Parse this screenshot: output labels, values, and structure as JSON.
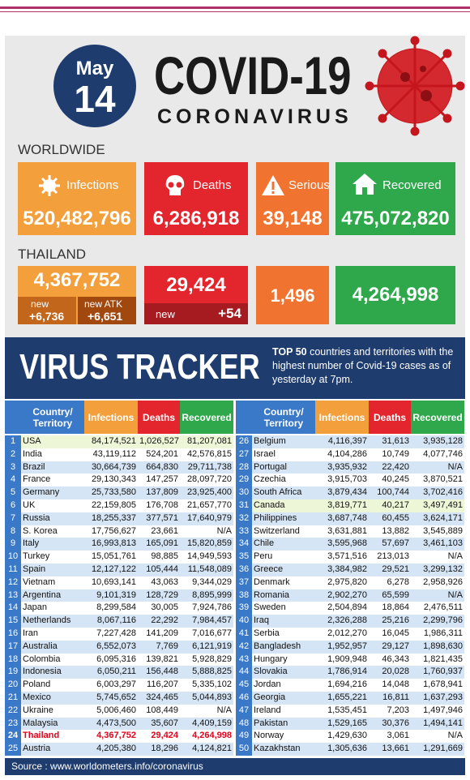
{
  "header": {
    "month": "May",
    "day": "14",
    "title": "COVID-19",
    "subtitle": "CORONAVIRUS"
  },
  "worldwide": {
    "label": "WORLDWIDE",
    "infections": {
      "label": "Infections",
      "value": "520,482,796"
    },
    "deaths": {
      "label": "Deaths",
      "value": "6,286,918"
    },
    "serious": {
      "label": "Serious",
      "value": "39,148"
    },
    "recovered": {
      "label": "Recovered",
      "value": "475,072,820"
    }
  },
  "thailand": {
    "label": "THAILAND",
    "infections": {
      "value": "4,367,752",
      "new_label": "new",
      "new_value": "+6,736",
      "atk_label": "new ATK",
      "atk_value": "+6,651"
    },
    "deaths": {
      "value": "29,424",
      "new_label": "new",
      "new_value": "+54"
    },
    "serious": {
      "value": "1,496"
    },
    "recovered": {
      "value": "4,264,998"
    }
  },
  "tracker": {
    "title": "VIRUS TRACKER",
    "lead": "TOP 50",
    "text": " countries and territories with the highest number of Covid-19 cases as of yesterday at 7pm."
  },
  "table": {
    "headers": [
      "Country/ Territory",
      "Infections",
      "Deaths",
      "Recovered"
    ],
    "rows": [
      [
        "1",
        "USA",
        "84,174,521",
        "1,026,527",
        "81,207,081"
      ],
      [
        "2",
        "India",
        "43,119,112",
        "524,201",
        "42,576,815"
      ],
      [
        "3",
        "Brazil",
        "30,664,739",
        "664,830",
        "29,711,738"
      ],
      [
        "4",
        "France",
        "29,130,343",
        "147,257",
        "28,097,720"
      ],
      [
        "5",
        "Germany",
        "25,733,580",
        "137,809",
        "23,925,400"
      ],
      [
        "6",
        "UK",
        "22,159,805",
        "176,708",
        "21,657,770"
      ],
      [
        "7",
        "Russia",
        "18,255,337",
        "377,571",
        "17,640,979"
      ],
      [
        "8",
        "S. Korea",
        "17,756,627",
        "23,661",
        "N/A"
      ],
      [
        "9",
        "Italy",
        "16,993,813",
        "165,091",
        "15,820,859"
      ],
      [
        "10",
        "Turkey",
        "15,051,761",
        "98,885",
        "14,949,593"
      ],
      [
        "11",
        "Spain",
        "12,127,122",
        "105,444",
        "11,548,089"
      ],
      [
        "12",
        "Vietnam",
        "10,693,141",
        "43,063",
        "9,344,029"
      ],
      [
        "13",
        "Argentina",
        "9,101,319",
        "128,729",
        "8,895,999"
      ],
      [
        "14",
        "Japan",
        "8,299,584",
        "30,005",
        "7,924,786"
      ],
      [
        "15",
        "Netherlands",
        "8,067,116",
        "22,292",
        "7,984,457"
      ],
      [
        "16",
        "Iran",
        "7,227,428",
        "141,209",
        "7,016,677"
      ],
      [
        "17",
        "Australia",
        "6,552,073",
        "7,769",
        "6,121,919"
      ],
      [
        "18",
        "Colombia",
        "6,095,316",
        "139,821",
        "5,928,829"
      ],
      [
        "19",
        "Indonesia",
        "6,050,211",
        "156,448",
        "5,888,825"
      ],
      [
        "20",
        "Poland",
        "6,003,297",
        "116,207",
        "5,335,102"
      ],
      [
        "21",
        "Mexico",
        "5,745,652",
        "324,465",
        "5,044,893"
      ],
      [
        "22",
        "Ukraine",
        "5,006,460",
        "108,449",
        "N/A"
      ],
      [
        "23",
        "Malaysia",
        "4,473,500",
        "35,607",
        "4,409,159"
      ],
      [
        "24",
        "Thailand",
        "4,367,752",
        "29,424",
        "4,264,998"
      ],
      [
        "25",
        "Austria",
        "4,205,380",
        "18,296",
        "4,124,821"
      ],
      [
        "26",
        "Belgium",
        "4,116,397",
        "31,613",
        "3,935,128"
      ],
      [
        "27",
        "Israel",
        "4,104,286",
        "10,749",
        "4,077,746"
      ],
      [
        "28",
        "Portugal",
        "3,935,932",
        "22,420",
        "N/A"
      ],
      [
        "29",
        "Czechia",
        "3,915,703",
        "40,245",
        "3,870,521"
      ],
      [
        "30",
        "South Africa",
        "3,879,434",
        "100,744",
        "3,702,416"
      ],
      [
        "31",
        "Canada",
        "3,819,771",
        "40,217",
        "3,497,491"
      ],
      [
        "32",
        "Philippines",
        "3,687,748",
        "60,455",
        "3,624,171"
      ],
      [
        "33",
        "Switzerland",
        "3,631,881",
        "13,882",
        "3,545,889"
      ],
      [
        "34",
        "Chile",
        "3,595,968",
        "57,697",
        "3,461,103"
      ],
      [
        "35",
        "Peru",
        "3,571,516",
        "213,013",
        "N/A"
      ],
      [
        "36",
        "Greece",
        "3,384,982",
        "29,521",
        "3,299,132"
      ],
      [
        "37",
        "Denmark",
        "2,975,820",
        "6,278",
        "2,958,926"
      ],
      [
        "38",
        "Romania",
        "2,902,270",
        "65,599",
        "N/A"
      ],
      [
        "39",
        "Sweden",
        "2,504,894",
        "18,864",
        "2,476,511"
      ],
      [
        "40",
        "Iraq",
        "2,326,288",
        "25,216",
        "2,299,796"
      ],
      [
        "41",
        "Serbia",
        "2,012,270",
        "16,045",
        "1,986,311"
      ],
      [
        "42",
        "Bangladesh",
        "1,952,957",
        "29,127",
        "1,898,630"
      ],
      [
        "43",
        "Hungary",
        "1,909,948",
        "46,343",
        "1,821,435"
      ],
      [
        "44",
        "Slovakia",
        "1,786,914",
        "20,028",
        "1,760,937"
      ],
      [
        "45",
        "Jordan",
        "1,694,216",
        "14,048",
        "1,678,941"
      ],
      [
        "46",
        "Georgia",
        "1,655,221",
        "16,811",
        "1,637,293"
      ],
      [
        "47",
        "Ireland",
        "1,535,451",
        "7,203",
        "1,497,946"
      ],
      [
        "48",
        "Pakistan",
        "1,529,165",
        "30,376",
        "1,494,141"
      ],
      [
        "49",
        "Norway",
        "1,429,630",
        "3,061",
        "N/A"
      ],
      [
        "50",
        "Kazakhstan",
        "1,305,636",
        "13,661",
        "1,291,669"
      ]
    ]
  },
  "source": "Source : www.worldometers.info/coronavirus"
}
